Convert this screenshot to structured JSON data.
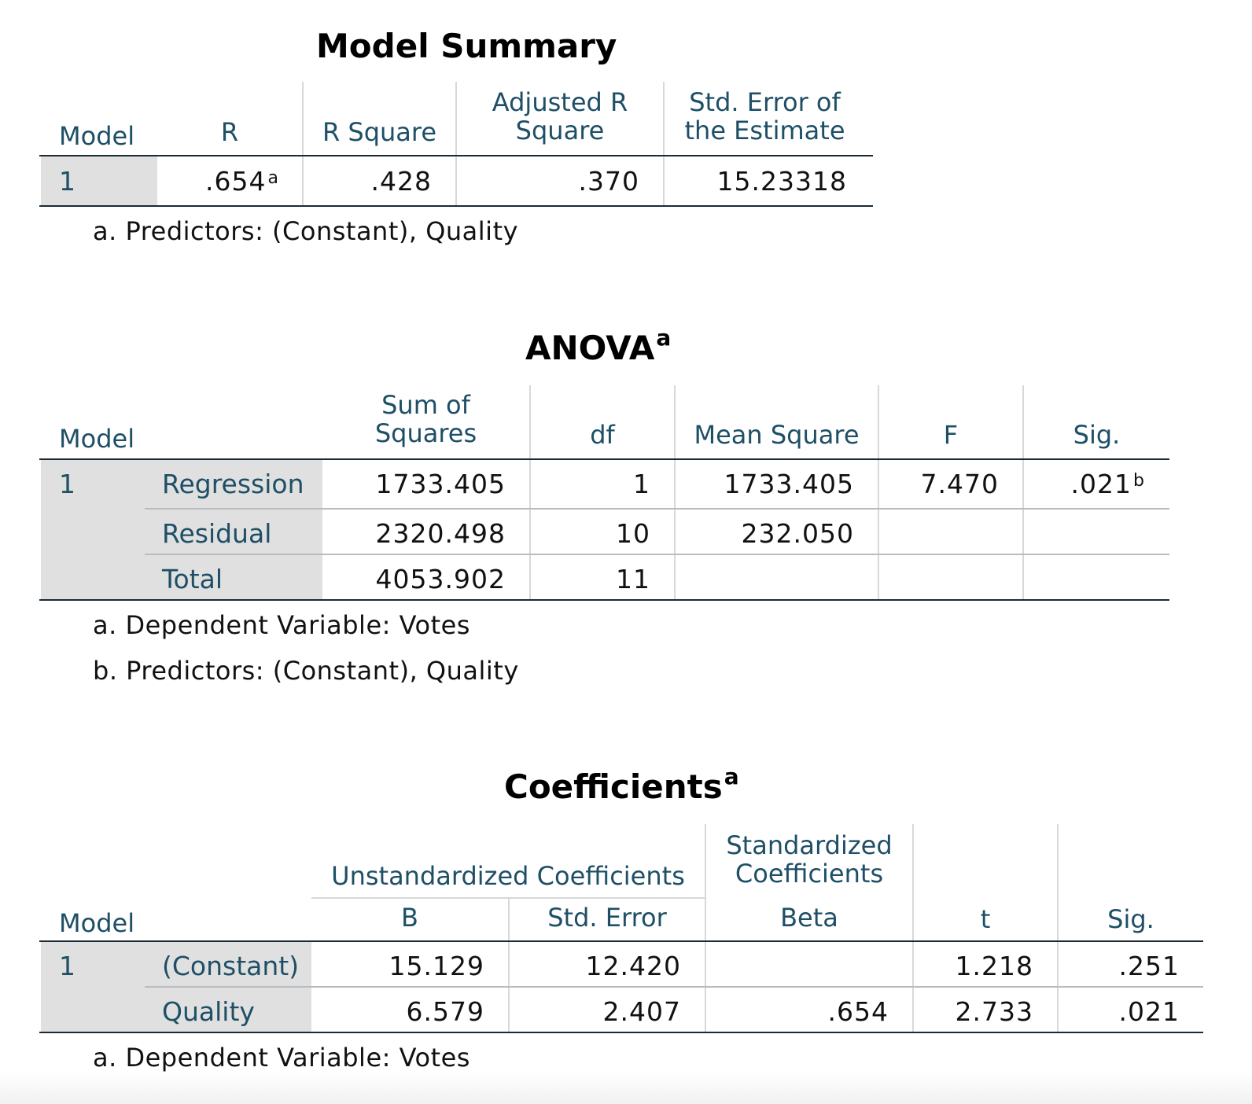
{
  "model_summary": {
    "title": "Model Summary",
    "headers": {
      "model": "Model",
      "r": "R",
      "r_square": "R Square",
      "adj_line1": "Adjusted R",
      "adj_line2": "Square",
      "se_line1": "Std. Error of",
      "se_line2": "the Estimate"
    },
    "row": {
      "model": "1",
      "r": ".654",
      "r_sup": "a",
      "r_square": ".428",
      "adj_r_square": ".370",
      "std_error": "15.23318"
    },
    "footnote": "a. Predictors: (Constant), Quality"
  },
  "anova": {
    "title": "ANOVA",
    "title_sup": "a",
    "headers": {
      "model": "Model",
      "ss_line1": "Sum of",
      "ss_line2": "Squares",
      "df": "df",
      "mean_square": "Mean Square",
      "f": "F",
      "sig": "Sig."
    },
    "model": "1",
    "rows": [
      {
        "label": "Regression",
        "ss": "1733.405",
        "df": "1",
        "ms": "1733.405",
        "f": "7.470",
        "sig": ".021",
        "sig_sup": "b"
      },
      {
        "label": "Residual",
        "ss": "2320.498",
        "df": "10",
        "ms": "232.050"
      },
      {
        "label": "Total",
        "ss": "4053.902",
        "df": "11"
      }
    ],
    "footnotes": [
      "a. Dependent Variable: Votes",
      "b. Predictors: (Constant), Quality"
    ]
  },
  "coefficients": {
    "title": "Coefficients",
    "title_sup": "a",
    "headers": {
      "model": "Model",
      "unstd": "Unstandardized Coefficients",
      "std_line1": "Standardized",
      "std_line2": "Coefficients",
      "b": "B",
      "std_error": "Std. Error",
      "beta": "Beta",
      "t": "t",
      "sig": "Sig."
    },
    "model": "1",
    "rows": [
      {
        "label": "(Constant)",
        "b": "15.129",
        "se": "12.420",
        "beta": "",
        "t": "1.218",
        "sig": ".251"
      },
      {
        "label": "Quality",
        "b": "6.579",
        "se": "2.407",
        "beta": ".654",
        "t": "2.733",
        "sig": ".021"
      }
    ],
    "footnote": "a. Dependent Variable: Votes"
  }
}
